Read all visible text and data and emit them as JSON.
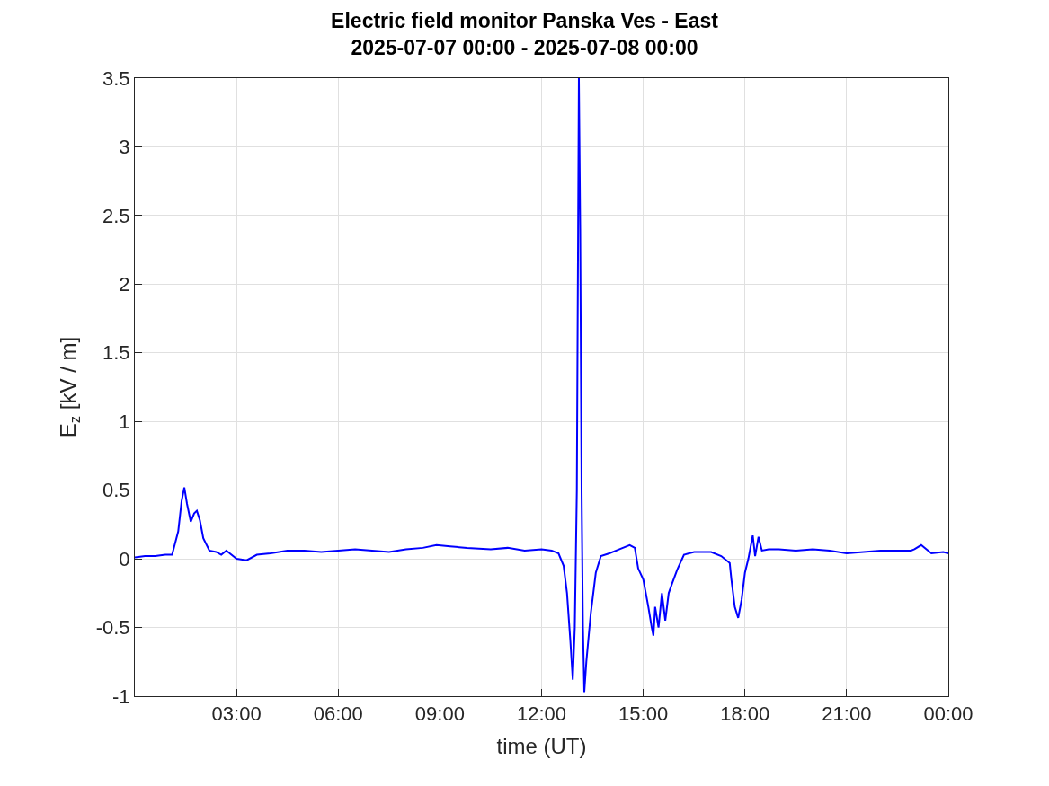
{
  "chart_data": {
    "type": "line",
    "title": "Electric field monitor Panska Ves - East\n2025-07-07 00:00 - 2025-07-08 00:00",
    "xlabel": "time (UT)",
    "ylabel": "E$_{z}$ [kV / m]",
    "x": [
      0,
      0.3,
      0.6,
      0.9,
      1.1,
      1.28,
      1.38,
      1.46,
      1.54,
      1.65,
      1.75,
      1.83,
      1.92,
      2.02,
      2.2,
      2.4,
      2.55,
      2.7,
      2.85,
      3.0,
      3.3,
      3.6,
      4.0,
      4.5,
      5.0,
      5.5,
      6.0,
      6.5,
      7.0,
      7.5,
      8.0,
      8.5,
      8.9,
      9.3,
      9.8,
      10.5,
      11.0,
      11.5,
      12.0,
      12.3,
      12.5,
      12.65,
      12.75,
      12.85,
      12.92,
      12.98,
      13.04,
      13.1,
      13.14,
      13.18,
      13.22,
      13.26,
      13.32,
      13.45,
      13.6,
      13.75,
      14.0,
      14.3,
      14.6,
      14.75,
      14.85,
      15.0,
      15.15,
      15.25,
      15.3,
      15.35,
      15.45,
      15.55,
      15.65,
      15.75,
      15.85,
      16.0,
      16.2,
      16.5,
      17.0,
      17.3,
      17.55,
      17.6,
      17.7,
      17.8,
      17.9,
      18.0,
      18.1,
      18.23,
      18.3,
      18.4,
      18.5,
      18.7,
      19.0,
      19.5,
      20.0,
      20.5,
      21.0,
      21.5,
      22.0,
      22.5,
      22.9,
      23.0,
      23.2,
      23.5,
      23.85,
      24.0
    ],
    "series": [
      {
        "color": "#0000ff",
        "values": [
          0.01,
          0.02,
          0.02,
          0.03,
          0.03,
          0.2,
          0.42,
          0.52,
          0.4,
          0.27,
          0.33,
          0.35,
          0.28,
          0.15,
          0.06,
          0.05,
          0.03,
          0.06,
          0.03,
          0.0,
          -0.01,
          0.03,
          0.04,
          0.06,
          0.06,
          0.05,
          0.06,
          0.07,
          0.06,
          0.05,
          0.07,
          0.08,
          0.1,
          0.09,
          0.08,
          0.07,
          0.08,
          0.06,
          0.07,
          0.06,
          0.04,
          -0.05,
          -0.25,
          -0.6,
          -0.88,
          -0.5,
          0.5,
          3.5,
          2.4,
          0.5,
          -0.5,
          -0.97,
          -0.75,
          -0.4,
          -0.1,
          0.02,
          0.04,
          0.07,
          0.1,
          0.08,
          -0.07,
          -0.15,
          -0.35,
          -0.5,
          -0.56,
          -0.35,
          -0.5,
          -0.25,
          -0.45,
          -0.25,
          -0.18,
          -0.08,
          0.03,
          0.05,
          0.05,
          0.02,
          -0.03,
          -0.15,
          -0.35,
          -0.43,
          -0.3,
          -0.1,
          0.0,
          0.17,
          0.02,
          0.16,
          0.06,
          0.07,
          0.07,
          0.06,
          0.07,
          0.06,
          0.04,
          0.05,
          0.06,
          0.06,
          0.06,
          0.07,
          0.1,
          0.04,
          0.05,
          0.04
        ]
      }
    ],
    "xlim": [
      0,
      24
    ],
    "xticks": [
      {
        "value": 3,
        "label": "03:00"
      },
      {
        "value": 6,
        "label": "06:00"
      },
      {
        "value": 9,
        "label": "09:00"
      },
      {
        "value": 12,
        "label": "12:00"
      },
      {
        "value": 15,
        "label": "15:00"
      },
      {
        "value": 18,
        "label": "18:00"
      },
      {
        "value": 21,
        "label": "21:00"
      },
      {
        "value": 24,
        "label": "00:00"
      }
    ],
    "ylim": [
      -1,
      3.5
    ],
    "yticks": [
      -1,
      -0.5,
      0,
      0.5,
      1,
      1.5,
      2,
      2.5,
      3,
      3.5
    ],
    "grid": true,
    "legend": false,
    "line_style": "solid",
    "marker": "none"
  }
}
